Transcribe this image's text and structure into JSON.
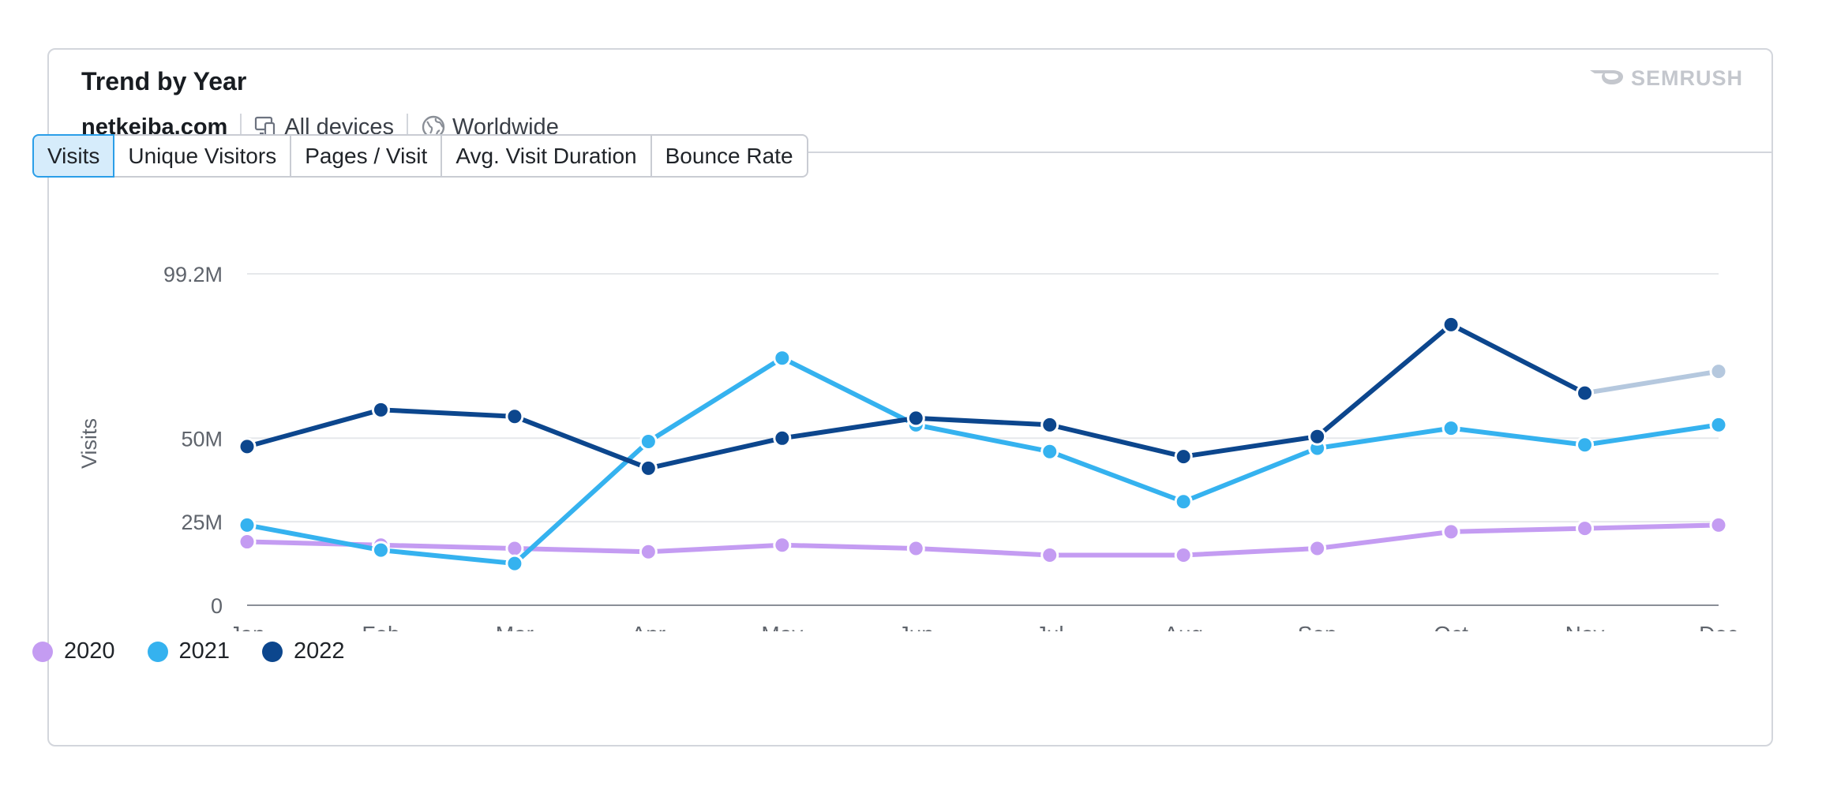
{
  "header": {
    "title": "Trend by Year",
    "domain": "netkeiba.com",
    "devices": "All devices",
    "region": "Worldwide",
    "logo_text": "SEMRUSH"
  },
  "tabs": [
    {
      "label": "Visits",
      "active": true
    },
    {
      "label": "Unique Visitors",
      "active": false
    },
    {
      "label": "Pages / Visit",
      "active": false
    },
    {
      "label": "Avg. Visit Duration",
      "active": false
    },
    {
      "label": "Bounce Rate",
      "active": false
    }
  ],
  "colors": {
    "2020": "#c49cf2",
    "2021": "#35b2ef",
    "2022": "#0c468d",
    "projected": "#b5c8de",
    "grid": "#e6e8eb",
    "axis": "#8a8f97",
    "tick_text": "#5f646c"
  },
  "chart_data": {
    "type": "line",
    "ylabel": "Visits",
    "xlabel": "",
    "categories": [
      "Jan",
      "Feb",
      "Mar",
      "Apr",
      "May",
      "Jun",
      "Jul",
      "Aug",
      "Sep",
      "Oct",
      "Nov",
      "Dec"
    ],
    "ylim": [
      0,
      99.2
    ],
    "y_unit": "M",
    "yticks": [
      {
        "value": 0,
        "label": "0"
      },
      {
        "value": 25,
        "label": "25M"
      },
      {
        "value": 50,
        "label": "50M"
      },
      {
        "value": 99.2,
        "label": "99.2M"
      }
    ],
    "grid": true,
    "legend_position": "bottom-left",
    "series": [
      {
        "name": "2020",
        "color_key": "2020",
        "values": [
          19,
          18,
          17,
          16,
          18,
          17,
          15,
          15,
          17,
          22,
          23,
          24
        ]
      },
      {
        "name": "2021",
        "color_key": "2021",
        "values": [
          24,
          16.5,
          12.5,
          49,
          74,
          54,
          46,
          31,
          47,
          53,
          48,
          54
        ]
      },
      {
        "name": "2022",
        "color_key": "2022",
        "values": [
          47.5,
          58.5,
          56.5,
          41,
          50,
          56,
          54,
          44.5,
          50.5,
          84,
          63.5,
          null
        ],
        "projected": {
          "from_index": 10,
          "to_index": 11,
          "value": 70
        }
      }
    ]
  }
}
